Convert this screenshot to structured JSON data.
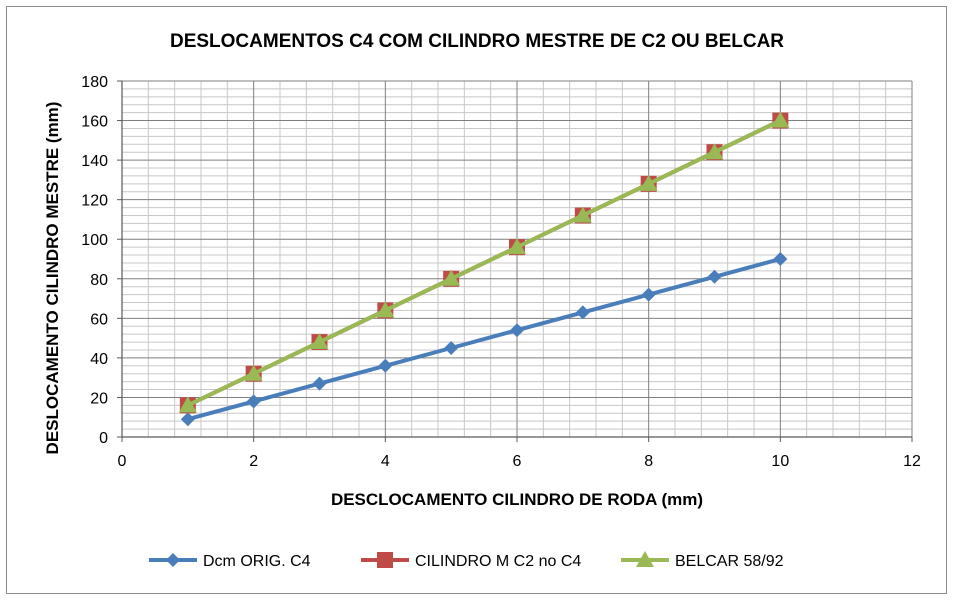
{
  "chart_data": {
    "type": "line",
    "title": "DESLOCAMENTOS C4 COM CILINDRO MESTRE  DE C2 OU BELCAR",
    "xlabel": "DESCLOCAMENTO CILINDRO DE RODA (mm)",
    "ylabel": "DESLOCAMENTO CILINDRO MESTRE (mm)",
    "xlim": [
      0,
      12
    ],
    "ylim": [
      0,
      180
    ],
    "x_ticks": [
      0,
      2,
      4,
      6,
      8,
      10,
      12
    ],
    "y_ticks": [
      0,
      20,
      40,
      60,
      80,
      100,
      120,
      140,
      160,
      180
    ],
    "grid": true,
    "legend_position": "bottom",
    "x": [
      1,
      2,
      3,
      4,
      5,
      6,
      7,
      8,
      9,
      10
    ],
    "series": [
      {
        "name": "Dcm ORIG. C4",
        "color": "#4a7ebb",
        "marker": "diamond",
        "values": [
          9,
          18,
          27,
          36,
          45,
          54,
          63,
          72,
          81,
          90
        ]
      },
      {
        "name": "CILINDRO M C2 no C4",
        "color": "#be4b48",
        "marker": "square",
        "values": [
          16,
          32,
          48,
          64,
          80,
          96,
          112,
          128,
          144,
          160
        ]
      },
      {
        "name": "BELCAR 58/92",
        "color": "#98b954",
        "marker": "triangle",
        "values": [
          16,
          32,
          48,
          64,
          80,
          96,
          112,
          128,
          144,
          160
        ]
      }
    ]
  }
}
